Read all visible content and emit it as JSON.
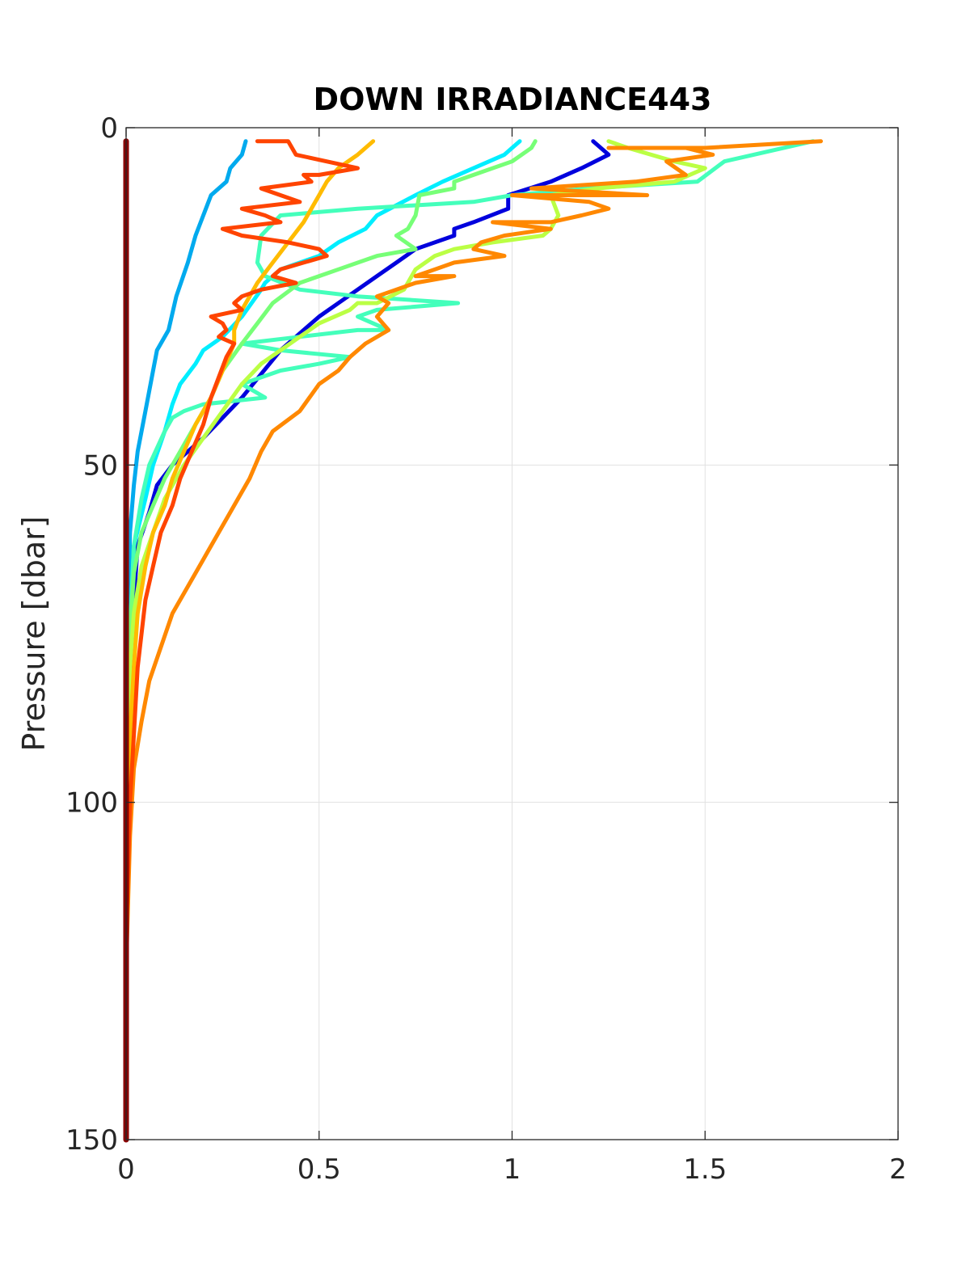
{
  "chart_data": {
    "type": "line",
    "title": "DOWN IRRADIANCE443",
    "xlabel": "",
    "ylabel": "Pressure [dbar]",
    "xlim": [
      0,
      2
    ],
    "ylim": [
      150,
      0
    ],
    "y_reversed": true,
    "grid": true,
    "xticks": [
      "0",
      "0.5",
      "1",
      "1.5",
      "2"
    ],
    "yticks": [
      "0",
      "50",
      "100",
      "150"
    ],
    "series": [
      {
        "color": "#0000dd",
        "points": [
          [
            1.21,
            2
          ],
          [
            1.25,
            4
          ],
          [
            1.18,
            6
          ],
          [
            1.1,
            8
          ],
          [
            0.99,
            10
          ],
          [
            0.99,
            12
          ],
          [
            0.9,
            14
          ],
          [
            0.85,
            15
          ],
          [
            0.85,
            16
          ],
          [
            0.75,
            18
          ],
          [
            0.7,
            20
          ],
          [
            0.65,
            22
          ],
          [
            0.55,
            26
          ],
          [
            0.5,
            28
          ],
          [
            0.4,
            33
          ],
          [
            0.3,
            40
          ],
          [
            0.2,
            46
          ],
          [
            0.12,
            50
          ],
          [
            0.08,
            53
          ],
          [
            0.06,
            57
          ],
          [
            0.03,
            62
          ],
          [
            0.02,
            70
          ],
          [
            0.01,
            85
          ],
          [
            0.005,
            100
          ],
          [
            0,
            120
          ],
          [
            0,
            150
          ]
        ]
      },
      {
        "color": "#00aaee",
        "points": [
          [
            0.31,
            2
          ],
          [
            0.3,
            4
          ],
          [
            0.27,
            6
          ],
          [
            0.26,
            8
          ],
          [
            0.22,
            10
          ],
          [
            0.2,
            13
          ],
          [
            0.18,
            16
          ],
          [
            0.16,
            20
          ],
          [
            0.13,
            25
          ],
          [
            0.11,
            30
          ],
          [
            0.08,
            33
          ],
          [
            0.07,
            36
          ],
          [
            0.05,
            42
          ],
          [
            0.03,
            48
          ],
          [
            0.02,
            53
          ],
          [
            0.01,
            60
          ],
          [
            0.005,
            75
          ],
          [
            0,
            100
          ],
          [
            0,
            150
          ]
        ]
      },
      {
        "color": "#00eeff",
        "points": [
          [
            1.02,
            2
          ],
          [
            0.98,
            4
          ],
          [
            0.9,
            6
          ],
          [
            0.82,
            8
          ],
          [
            0.75,
            10
          ],
          [
            0.65,
            13
          ],
          [
            0.62,
            15
          ],
          [
            0.55,
            17
          ],
          [
            0.5,
            19
          ],
          [
            0.4,
            21
          ],
          [
            0.36,
            23
          ],
          [
            0.35,
            24
          ],
          [
            0.3,
            28
          ],
          [
            0.25,
            31
          ],
          [
            0.2,
            33
          ],
          [
            0.18,
            35
          ],
          [
            0.14,
            38
          ],
          [
            0.12,
            41
          ],
          [
            0.1,
            45
          ],
          [
            0.07,
            50
          ],
          [
            0.05,
            55
          ],
          [
            0.02,
            62
          ],
          [
            0.01,
            75
          ],
          [
            0,
            95
          ],
          [
            0,
            150
          ]
        ]
      },
      {
        "color": "#44ffbb",
        "points": [
          [
            1.78,
            2
          ],
          [
            1.55,
            5
          ],
          [
            1.48,
            8
          ],
          [
            1.2,
            9
          ],
          [
            1.0,
            10
          ],
          [
            0.9,
            11
          ],
          [
            0.6,
            12
          ],
          [
            0.4,
            13
          ],
          [
            0.35,
            16
          ],
          [
            0.34,
            20
          ],
          [
            0.36,
            22
          ],
          [
            0.45,
            24
          ],
          [
            0.6,
            25
          ],
          [
            0.86,
            26
          ],
          [
            0.65,
            27
          ],
          [
            0.6,
            28
          ],
          [
            0.68,
            30
          ],
          [
            0.6,
            30
          ],
          [
            0.45,
            31
          ],
          [
            0.3,
            32
          ],
          [
            0.4,
            33
          ],
          [
            0.58,
            34
          ],
          [
            0.5,
            35
          ],
          [
            0.4,
            36
          ],
          [
            0.3,
            38
          ],
          [
            0.36,
            40
          ],
          [
            0.2,
            41
          ],
          [
            0.15,
            42
          ],
          [
            0.12,
            43
          ],
          [
            0.1,
            45
          ],
          [
            0.06,
            50
          ],
          [
            0.04,
            55
          ],
          [
            0.02,
            62
          ],
          [
            0.01,
            75
          ],
          [
            0,
            95
          ],
          [
            0,
            150
          ]
        ]
      },
      {
        "color": "#77ff77",
        "points": [
          [
            1.06,
            2
          ],
          [
            1.05,
            3
          ],
          [
            1.0,
            5
          ],
          [
            0.9,
            7
          ],
          [
            0.85,
            8
          ],
          [
            0.85,
            9
          ],
          [
            0.76,
            10
          ],
          [
            0.75,
            13
          ],
          [
            0.73,
            15
          ],
          [
            0.7,
            16
          ],
          [
            0.75,
            18
          ],
          [
            0.65,
            19
          ],
          [
            0.55,
            21
          ],
          [
            0.5,
            22
          ],
          [
            0.45,
            23
          ],
          [
            0.38,
            26
          ],
          [
            0.34,
            29
          ],
          [
            0.3,
            32
          ],
          [
            0.25,
            36
          ],
          [
            0.22,
            40
          ],
          [
            0.18,
            44
          ],
          [
            0.14,
            48
          ],
          [
            0.1,
            52
          ],
          [
            0.07,
            56
          ],
          [
            0.04,
            60
          ],
          [
            0.02,
            66
          ],
          [
            0.01,
            75
          ],
          [
            0,
            95
          ],
          [
            0,
            150
          ]
        ]
      },
      {
        "color": "#bbff44",
        "points": [
          [
            1.25,
            2
          ],
          [
            1.3,
            3
          ],
          [
            1.42,
            5
          ],
          [
            1.5,
            6
          ],
          [
            1.42,
            8
          ],
          [
            1.22,
            9
          ],
          [
            1.1,
            10
          ],
          [
            1.12,
            13
          ],
          [
            1.1,
            15
          ],
          [
            1.08,
            16
          ],
          [
            0.95,
            17
          ],
          [
            0.85,
            18
          ],
          [
            0.8,
            19
          ],
          [
            0.75,
            21
          ],
          [
            0.72,
            24
          ],
          [
            0.65,
            26
          ],
          [
            0.6,
            26
          ],
          [
            0.58,
            27
          ],
          [
            0.5,
            29
          ],
          [
            0.45,
            31
          ],
          [
            0.4,
            33
          ],
          [
            0.35,
            35
          ],
          [
            0.3,
            38
          ],
          [
            0.25,
            42
          ],
          [
            0.2,
            46
          ],
          [
            0.15,
            50
          ],
          [
            0.1,
            55
          ],
          [
            0.07,
            60
          ],
          [
            0.04,
            65
          ],
          [
            0.02,
            72
          ],
          [
            0.01,
            80
          ],
          [
            0,
            100
          ],
          [
            0,
            150
          ]
        ]
      },
      {
        "color": "#ffbb00",
        "points": [
          [
            0.64,
            2
          ],
          [
            0.6,
            4
          ],
          [
            0.55,
            6
          ],
          [
            0.52,
            8
          ],
          [
            0.5,
            10
          ],
          [
            0.48,
            12
          ],
          [
            0.46,
            14
          ],
          [
            0.42,
            17
          ],
          [
            0.38,
            20
          ],
          [
            0.34,
            23
          ],
          [
            0.3,
            27
          ],
          [
            0.28,
            30
          ],
          [
            0.28,
            32
          ],
          [
            0.25,
            36
          ],
          [
            0.22,
            40
          ],
          [
            0.18,
            44
          ],
          [
            0.15,
            48
          ],
          [
            0.12,
            52
          ],
          [
            0.1,
            56
          ],
          [
            0.07,
            60
          ],
          [
            0.05,
            65
          ],
          [
            0.03,
            72
          ],
          [
            0.02,
            80
          ],
          [
            0.01,
            90
          ],
          [
            0,
            110
          ],
          [
            0,
            150
          ]
        ]
      },
      {
        "color": "#ff8800",
        "points": [
          [
            1.8,
            2
          ],
          [
            1.5,
            3
          ],
          [
            1.25,
            3
          ],
          [
            1.45,
            3
          ],
          [
            1.52,
            4
          ],
          [
            1.4,
            5
          ],
          [
            1.45,
            7
          ],
          [
            1.32,
            8
          ],
          [
            1.05,
            9
          ],
          [
            1.35,
            10
          ],
          [
            1.0,
            10
          ],
          [
            1.2,
            11
          ],
          [
            1.25,
            12
          ],
          [
            1.18,
            13
          ],
          [
            1.1,
            14
          ],
          [
            0.95,
            14
          ],
          [
            1.1,
            15
          ],
          [
            0.98,
            16
          ],
          [
            0.92,
            17
          ],
          [
            0.9,
            18
          ],
          [
            0.98,
            19
          ],
          [
            0.85,
            20
          ],
          [
            0.8,
            21
          ],
          [
            0.75,
            22
          ],
          [
            0.85,
            22
          ],
          [
            0.75,
            23
          ],
          [
            0.7,
            24
          ],
          [
            0.65,
            25
          ],
          [
            0.68,
            26
          ],
          [
            0.65,
            28
          ],
          [
            0.68,
            30
          ],
          [
            0.62,
            32
          ],
          [
            0.58,
            34
          ],
          [
            0.55,
            36
          ],
          [
            0.5,
            38
          ],
          [
            0.45,
            42
          ],
          [
            0.38,
            45
          ],
          [
            0.35,
            48
          ],
          [
            0.32,
            52
          ],
          [
            0.28,
            56
          ],
          [
            0.24,
            60
          ],
          [
            0.2,
            64
          ],
          [
            0.16,
            68
          ],
          [
            0.12,
            72
          ],
          [
            0.09,
            77
          ],
          [
            0.06,
            82
          ],
          [
            0.04,
            88
          ],
          [
            0.02,
            95
          ],
          [
            0.01,
            105
          ],
          [
            0,
            125
          ],
          [
            0,
            150
          ]
        ]
      },
      {
        "color": "#ff4400",
        "points": [
          [
            0.34,
            2
          ],
          [
            0.42,
            2
          ],
          [
            0.44,
            4
          ],
          [
            0.6,
            6
          ],
          [
            0.5,
            7
          ],
          [
            0.46,
            7
          ],
          [
            0.48,
            8
          ],
          [
            0.35,
            9
          ],
          [
            0.4,
            10
          ],
          [
            0.45,
            11
          ],
          [
            0.3,
            12
          ],
          [
            0.36,
            13
          ],
          [
            0.4,
            14
          ],
          [
            0.25,
            15
          ],
          [
            0.3,
            16
          ],
          [
            0.42,
            17
          ],
          [
            0.5,
            18
          ],
          [
            0.52,
            19
          ],
          [
            0.46,
            20
          ],
          [
            0.4,
            21
          ],
          [
            0.38,
            22
          ],
          [
            0.44,
            23
          ],
          [
            0.35,
            24
          ],
          [
            0.3,
            25
          ],
          [
            0.28,
            26
          ],
          [
            0.3,
            27
          ],
          [
            0.22,
            28
          ],
          [
            0.25,
            29
          ],
          [
            0.26,
            30
          ],
          [
            0.24,
            31
          ],
          [
            0.28,
            32
          ],
          [
            0.26,
            34
          ],
          [
            0.24,
            37
          ],
          [
            0.22,
            40
          ],
          [
            0.2,
            44
          ],
          [
            0.17,
            48
          ],
          [
            0.14,
            52
          ],
          [
            0.12,
            56
          ],
          [
            0.09,
            60
          ],
          [
            0.07,
            65
          ],
          [
            0.05,
            70
          ],
          [
            0.04,
            75
          ],
          [
            0.03,
            80
          ],
          [
            0.02,
            90
          ],
          [
            0.01,
            100
          ],
          [
            0,
            120
          ],
          [
            0,
            150
          ]
        ]
      },
      {
        "color": "#880000",
        "points": [
          [
            0,
            2
          ],
          [
            0,
            150
          ]
        ]
      }
    ]
  }
}
